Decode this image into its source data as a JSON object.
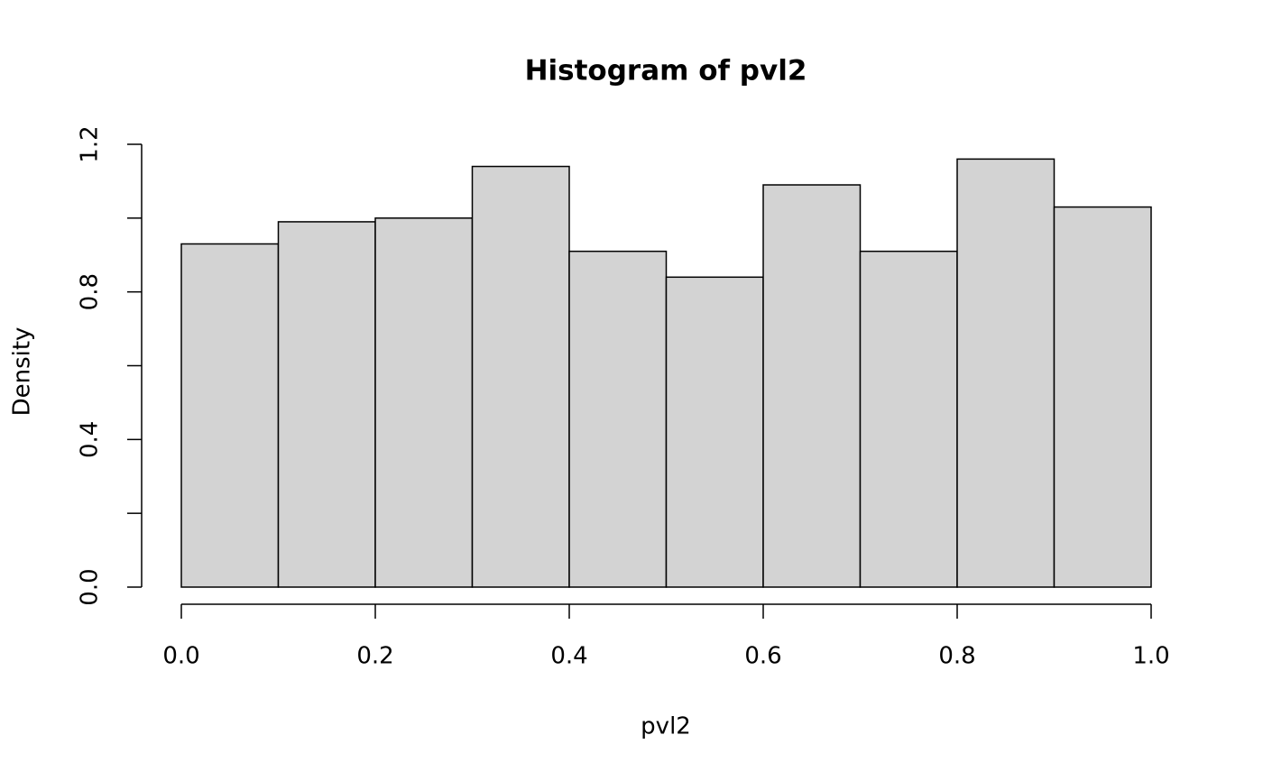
{
  "chart_data": {
    "type": "histogram",
    "title": "Histogram of pvl2",
    "x_label": "pvl2",
    "y_label": "Density",
    "bins": [
      0.0,
      0.1,
      0.2,
      0.3,
      0.4,
      0.5,
      0.6,
      0.7,
      0.8,
      0.9,
      1.0
    ],
    "values": [
      0.93,
      0.99,
      1.0,
      1.14,
      0.91,
      0.84,
      1.09,
      0.91,
      1.16,
      1.03
    ],
    "color": "#d3d3d3",
    "edge_color": "#000000",
    "xlim": [
      0,
      1
    ],
    "xticks": [
      {
        "value": 0,
        "label": "0.0"
      },
      0.2,
      0.4,
      0.6,
      0.8,
      {
        "value": 1,
        "label": "1.0"
      }
    ],
    "ylim": [
      0,
      1.2
    ],
    "yticks": [
      {
        "value": 0,
        "label": "0.0"
      },
      0.4,
      0.8,
      1.2
    ],
    "yminor_ticks": [
      0.2,
      0.6,
      1.0
    ],
    "grid": false
  }
}
